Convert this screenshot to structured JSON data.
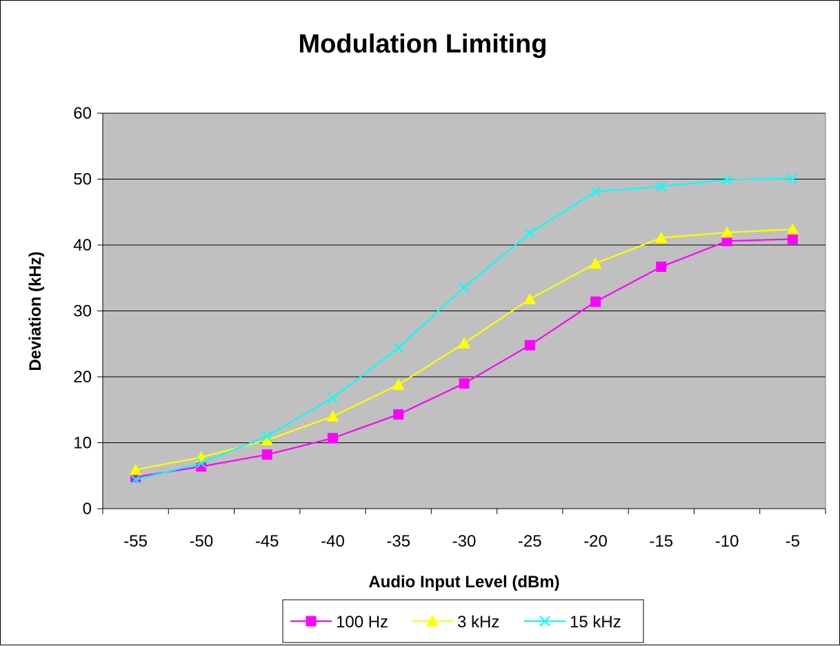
{
  "colors": {
    "background": "#ffffff",
    "plot_area": "#c0c0c0",
    "gridline": "#000000"
  },
  "chart_data": {
    "type": "line",
    "title": "Modulation Limiting",
    "xlabel": "Audio Input Level (dBm)",
    "ylabel": "Deviation (kHz)",
    "categories": [
      "-55",
      "-50",
      "-45",
      "-40",
      "-35",
      "-30",
      "-25",
      "-20",
      "-15",
      "-10",
      "-5"
    ],
    "ylim": [
      0,
      60
    ],
    "yticks": [
      "0",
      "10",
      "20",
      "30",
      "40",
      "50",
      "60"
    ],
    "grid": "horizontal major gridlines",
    "legend_position": "bottom",
    "series": [
      {
        "name": "100 Hz",
        "color": "#ff00ff",
        "marker": "square",
        "values": [
          4.8,
          6.4,
          8.2,
          10.7,
          14.3,
          19.0,
          24.8,
          31.4,
          36.7,
          40.6,
          40.9
        ]
      },
      {
        "name": "3 kHz",
        "color": "#ffff00",
        "marker": "triangle",
        "values": [
          5.9,
          7.8,
          10.4,
          14.0,
          18.8,
          25.1,
          31.8,
          37.2,
          41.1,
          41.9,
          42.4
        ]
      },
      {
        "name": "15 kHz",
        "color": "#00ffff",
        "marker": "x",
        "values": [
          4.4,
          6.9,
          11.0,
          16.8,
          24.4,
          33.6,
          41.8,
          48.1,
          48.9,
          49.9,
          50.1
        ]
      }
    ]
  }
}
